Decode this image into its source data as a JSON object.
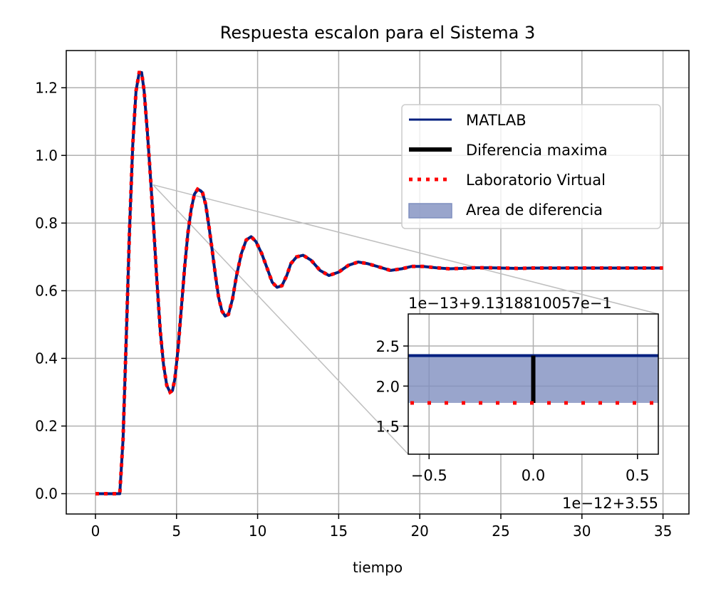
{
  "colors": {
    "matlab": "#001f7f",
    "lab": "#ff0000",
    "diff": "#000000",
    "area": "#7f8fbf",
    "grid": "#b0b0b0",
    "connector": "#bfbfbf"
  },
  "chart_data": {
    "type": "line",
    "title": "Respuesta escalon para el Sistema 3",
    "xlabel": "tiempo",
    "ylabel": "",
    "grid": true,
    "legend_position": "upper right",
    "xlim": [
      -1.8,
      36.6
    ],
    "ylim": [
      -0.06,
      1.31
    ],
    "xticks": [
      0,
      5,
      10,
      15,
      20,
      25,
      30,
      35
    ],
    "yticks": [
      0.0,
      0.2,
      0.4,
      0.6,
      0.8,
      1.0,
      1.2
    ],
    "xtick_labels": [
      "0",
      "5",
      "10",
      "15",
      "20",
      "25",
      "30",
      "35"
    ],
    "ytick_labels": [
      "0.0",
      "0.2",
      "0.4",
      "0.6",
      "0.8",
      "1.0",
      "1.2"
    ],
    "series": [
      {
        "name": "MATLAB",
        "style": "solid",
        "x": [
          0,
          1.5,
          1.7,
          1.9,
          2.1,
          2.3,
          2.5,
          2.7,
          2.85,
          3.0,
          3.2,
          3.4,
          3.6,
          3.8,
          4.0,
          4.2,
          4.4,
          4.6,
          4.75,
          4.9,
          5.1,
          5.3,
          5.5,
          5.7,
          5.9,
          6.1,
          6.3,
          6.5,
          6.6,
          6.8,
          7.0,
          7.2,
          7.4,
          7.6,
          7.8,
          8.0,
          8.2,
          8.45,
          8.7,
          9.0,
          9.3,
          9.6,
          9.9,
          10.25,
          10.6,
          10.9,
          11.2,
          11.5,
          11.8,
          12.05,
          12.4,
          12.8,
          13.3,
          13.85,
          14.4,
          15.0,
          15.6,
          16.2,
          16.8,
          17.5,
          18.2,
          18.9,
          19.5,
          20.2,
          21.0,
          21.8,
          22.6,
          23.4,
          24.2,
          25.0,
          26.0,
          27.0,
          28.0,
          29.0,
          30.0,
          31.0,
          32.0,
          33.0,
          34.0,
          35.0
        ],
        "y": [
          0.0,
          0.0,
          0.16,
          0.46,
          0.78,
          1.03,
          1.19,
          1.245,
          1.245,
          1.19,
          1.07,
          0.93,
          0.78,
          0.62,
          0.48,
          0.38,
          0.32,
          0.3,
          0.305,
          0.34,
          0.43,
          0.55,
          0.67,
          0.77,
          0.84,
          0.885,
          0.9,
          0.895,
          0.89,
          0.855,
          0.79,
          0.72,
          0.645,
          0.58,
          0.54,
          0.525,
          0.53,
          0.575,
          0.645,
          0.71,
          0.75,
          0.76,
          0.745,
          0.71,
          0.665,
          0.625,
          0.61,
          0.615,
          0.645,
          0.68,
          0.7,
          0.705,
          0.69,
          0.66,
          0.645,
          0.655,
          0.675,
          0.685,
          0.68,
          0.67,
          0.66,
          0.665,
          0.672,
          0.672,
          0.668,
          0.665,
          0.666,
          0.668,
          0.668,
          0.667,
          0.666,
          0.667,
          0.667,
          0.667,
          0.667,
          0.667,
          0.667,
          0.667,
          0.667,
          0.667
        ]
      },
      {
        "name": "Diferencia maxima",
        "style": "thick"
      },
      {
        "name": "Laboratorio Virtual",
        "style": "dotted"
      },
      {
        "name": "Area de diferencia",
        "style": "fill"
      }
    ],
    "zoom_point": {
      "x": 3.55,
      "y": 0.91318810057
    },
    "inset": {
      "offset_top": "1e−13+9.1318810057e−1",
      "offset_bottom": "1e−12+3.55",
      "xlim": [
        -0.6,
        0.6
      ],
      "ylim": [
        1.15,
        2.9
      ],
      "xticks": [
        -0.5,
        0.0,
        0.5
      ],
      "xtick_labels": [
        "−0.5",
        "0.0",
        "0.5"
      ],
      "yticks": [
        1.5,
        2.0,
        2.5
      ],
      "ytick_labels": [
        "1.5",
        "2.0",
        "2.5"
      ],
      "matlab_y": 2.38,
      "lab_y": 1.79,
      "diff_x": 0.0
    }
  }
}
